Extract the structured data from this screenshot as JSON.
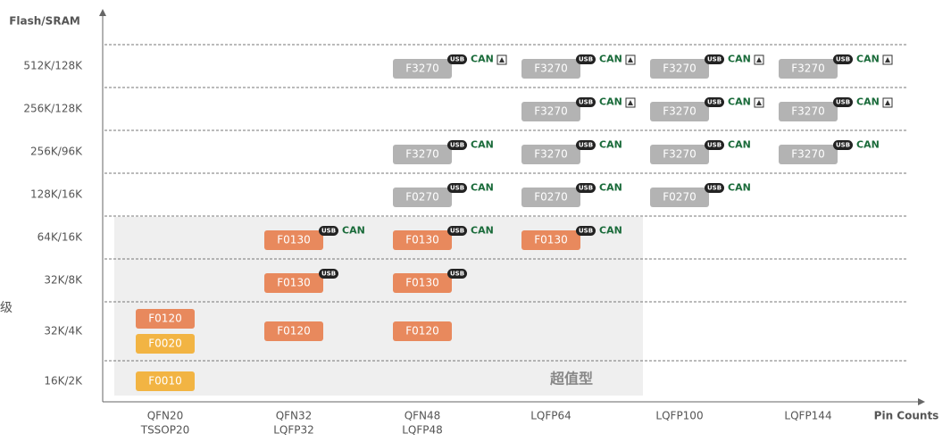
{
  "y_axis": {
    "title": "Flash/SRAM",
    "side_text": "级"
  },
  "x_axis": {
    "title": "Pin Counts",
    "columns": [
      [
        "QFN20",
        "TSSOP20"
      ],
      [
        "QFN32",
        "LQFP32"
      ],
      [
        "QFN48",
        "LQFP48"
      ],
      [
        "LQFP64"
      ],
      [
        "LQFP100"
      ],
      [
        "LQFP144"
      ]
    ]
  },
  "region": {
    "label": "超值型"
  },
  "rows": [
    {
      "label": "512K/128K",
      "cells": [
        [],
        [],
        [
          {
            "label": "F3270",
            "color": "#b3b3b3",
            "badges": [
              "USB",
              "CAN"
            ],
            "lock": true
          }
        ],
        [
          {
            "label": "F3270",
            "color": "#b3b3b3",
            "badges": [
              "USB",
              "CAN"
            ],
            "lock": true
          }
        ],
        [
          {
            "label": "F3270",
            "color": "#b3b3b3",
            "badges": [
              "USB",
              "CAN"
            ],
            "lock": true
          }
        ],
        [
          {
            "label": "F3270",
            "color": "#b3b3b3",
            "badges": [
              "USB",
              "CAN"
            ],
            "lock": true
          }
        ]
      ]
    },
    {
      "label": "256K/128K",
      "cells": [
        [],
        [],
        [],
        [
          {
            "label": "F3270",
            "color": "#b3b3b3",
            "badges": [
              "USB",
              "CAN"
            ],
            "lock": true
          }
        ],
        [
          {
            "label": "F3270",
            "color": "#b3b3b3",
            "badges": [
              "USB",
              "CAN"
            ],
            "lock": true
          }
        ],
        [
          {
            "label": "F3270",
            "color": "#b3b3b3",
            "badges": [
              "USB",
              "CAN"
            ],
            "lock": true
          }
        ]
      ]
    },
    {
      "label": "256K/96K",
      "cells": [
        [],
        [],
        [
          {
            "label": "F3270",
            "color": "#b3b3b3",
            "badges": [
              "USB",
              "CAN"
            ]
          }
        ],
        [
          {
            "label": "F3270",
            "color": "#b3b3b3",
            "badges": [
              "USB",
              "CAN"
            ]
          }
        ],
        [
          {
            "label": "F3270",
            "color": "#b3b3b3",
            "badges": [
              "USB",
              "CAN"
            ]
          }
        ],
        [
          {
            "label": "F3270",
            "color": "#b3b3b3",
            "badges": [
              "USB",
              "CAN"
            ]
          }
        ]
      ]
    },
    {
      "label": "128K/16K",
      "cells": [
        [],
        [],
        [
          {
            "label": "F0270",
            "color": "#b3b3b3",
            "badges": [
              "USB",
              "CAN"
            ]
          }
        ],
        [
          {
            "label": "F0270",
            "color": "#b3b3b3",
            "badges": [
              "USB",
              "CAN"
            ]
          }
        ],
        [
          {
            "label": "F0270",
            "color": "#b3b3b3",
            "badges": [
              "USB",
              "CAN"
            ]
          }
        ],
        []
      ]
    },
    {
      "label": "64K/16K",
      "cells": [
        [],
        [
          {
            "label": "F0130",
            "color": "#e8895d",
            "badges": [
              "USB",
              "CAN"
            ]
          }
        ],
        [
          {
            "label": "F0130",
            "color": "#e8895d",
            "badges": [
              "USB",
              "CAN"
            ]
          }
        ],
        [
          {
            "label": "F0130",
            "color": "#e8895d",
            "badges": [
              "USB",
              "CAN"
            ]
          }
        ],
        [],
        []
      ]
    },
    {
      "label": "32K/8K",
      "cells": [
        [],
        [
          {
            "label": "F0130",
            "color": "#e8895d",
            "badges": [
              "USB"
            ]
          }
        ],
        [
          {
            "label": "F0130",
            "color": "#e8895d",
            "badges": [
              "USB"
            ]
          }
        ],
        [],
        [],
        []
      ]
    },
    {
      "label": "32K/4K",
      "cells": [
        [
          {
            "label": "F0120",
            "color": "#e8895d",
            "badges": []
          },
          {
            "label": "F0020",
            "color": "#f2b443",
            "badges": []
          }
        ],
        [
          {
            "label": "F0120",
            "color": "#e8895d",
            "badges": []
          }
        ],
        [
          {
            "label": "F0120",
            "color": "#e8895d",
            "badges": []
          }
        ],
        [],
        [],
        []
      ]
    },
    {
      "label": "16K/2K",
      "cells": [
        [
          {
            "label": "F0010",
            "color": "#f2b443",
            "badges": []
          }
        ],
        [],
        [],
        [],
        [],
        []
      ]
    }
  ]
}
